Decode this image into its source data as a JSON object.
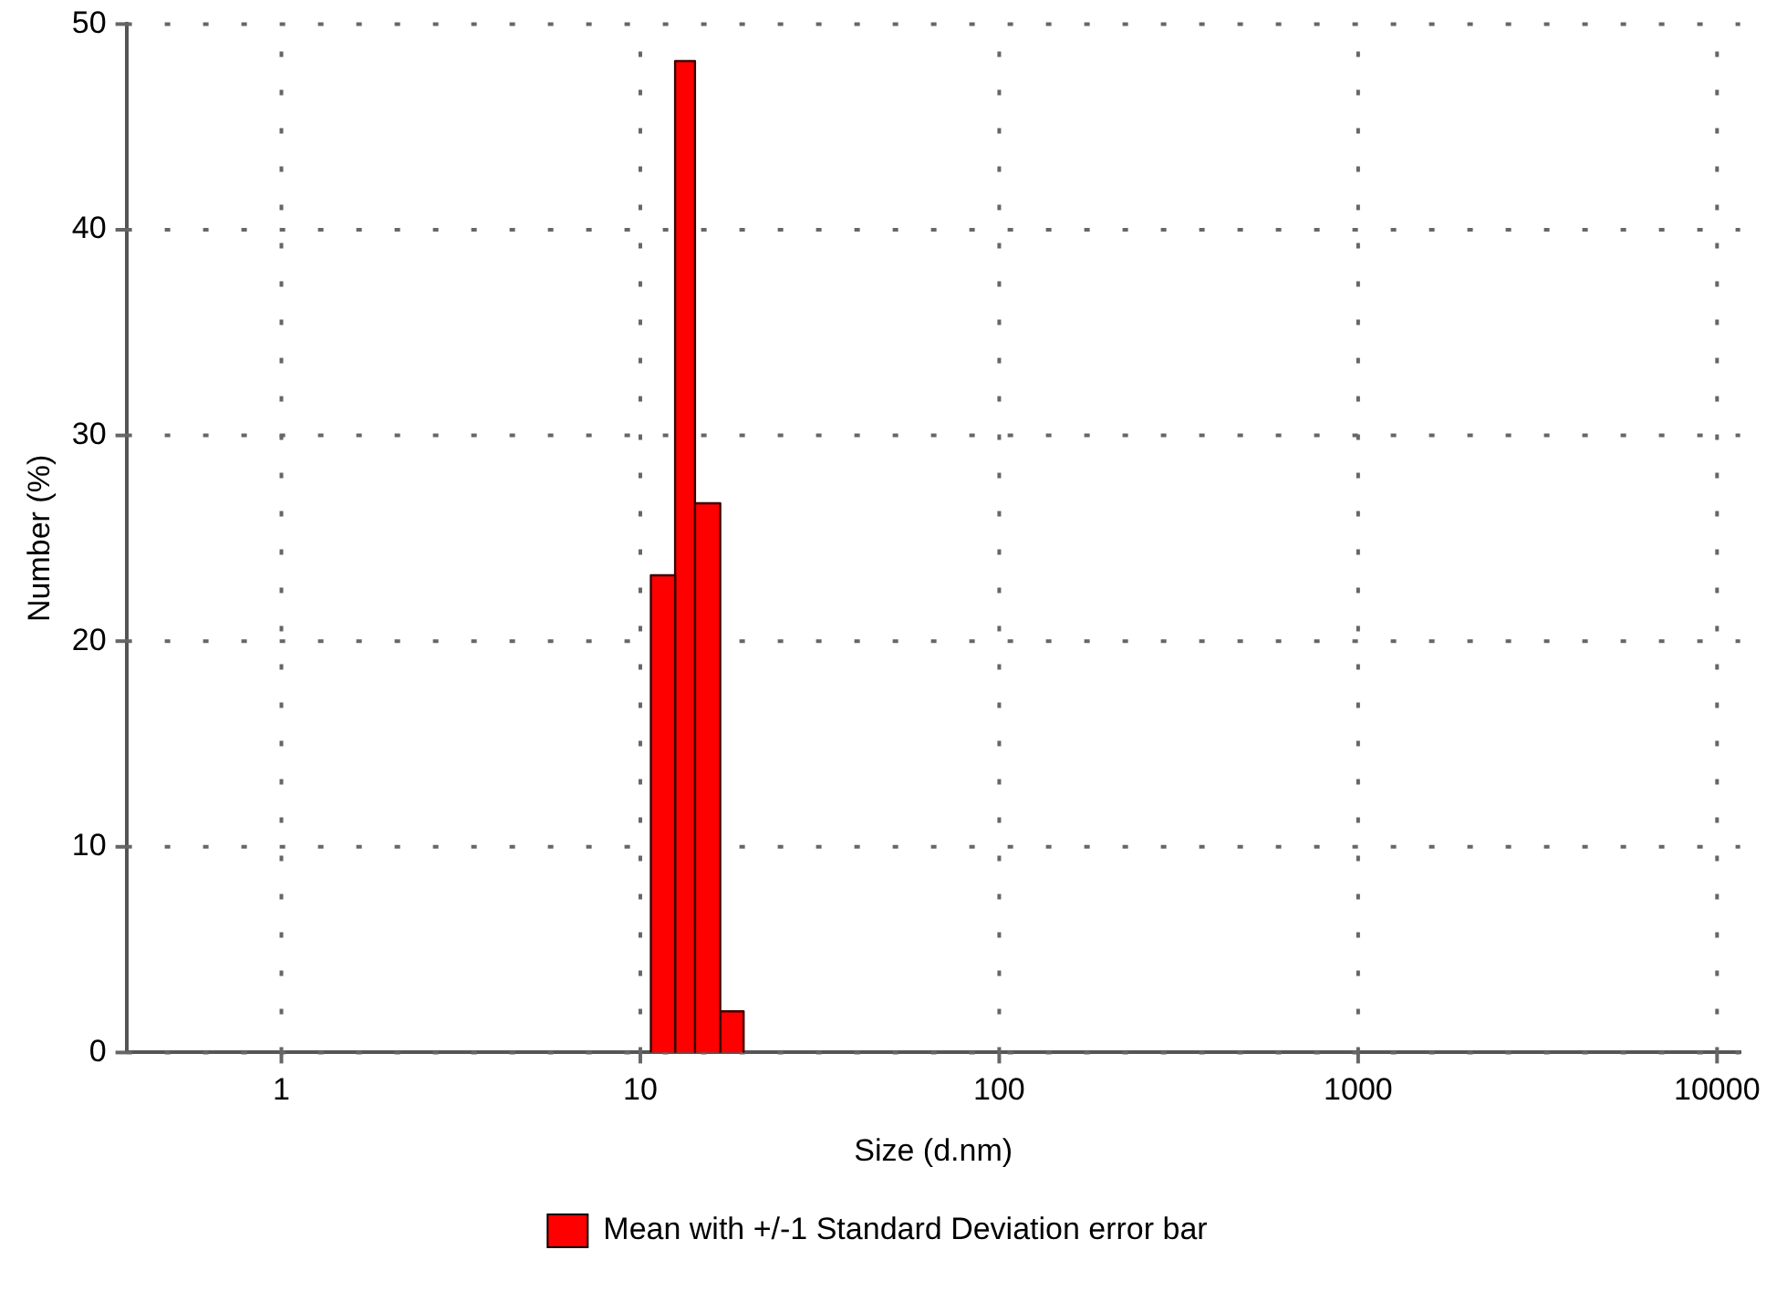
{
  "chart_data": {
    "type": "histogram",
    "xlabel": "Size (d.nm)",
    "ylabel": "Number (%)",
    "log": "x",
    "bins": [
      10.7,
      12.5,
      14.2,
      16.7,
      19.4
    ],
    "series": [
      {
        "name": "Mean with +/-1 Standard Deviation error bar",
        "color": "#ff0000",
        "values": [
          23.2,
          48.2,
          26.7,
          2.0
        ]
      }
    ],
    "xlim": [
      0.37,
      11600
    ],
    "xticks": [
      1,
      10,
      100,
      1000,
      10000
    ],
    "ylim": [
      0,
      50
    ],
    "yticks": [
      0,
      10,
      20,
      30,
      40,
      50
    ],
    "grid": true,
    "legend": "bottom"
  }
}
